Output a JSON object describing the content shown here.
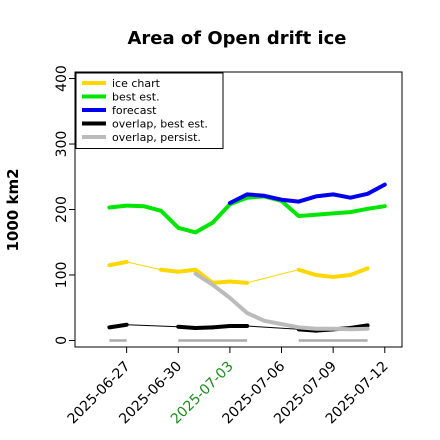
{
  "chart_data": {
    "type": "line",
    "title": "Area of Open drift ice",
    "xlabel": "",
    "ylabel": "1000 km2",
    "xlim": [
      "2025-06-24",
      "2025-07-13"
    ],
    "ylim": [
      -10,
      410
    ],
    "yticks": [
      0,
      100,
      200,
      300,
      400
    ],
    "xticks": [
      "2025-06-27",
      "2025-06-30",
      "2025-07-03",
      "2025-07-06",
      "2025-07-09",
      "2025-07-12"
    ],
    "highlight_tick": "2025-07-03",
    "highlight_color": "#1e8c1e",
    "grid": false,
    "legend_position": "top-left",
    "series": [
      {
        "name": "ice chart",
        "color": "#ffd700",
        "style": "thin-with-thick-segments",
        "x": [
          "2025-06-26",
          "2025-06-27",
          "2025-06-29",
          "2025-06-30",
          "2025-07-01",
          "2025-07-02",
          "2025-07-03",
          "2025-07-04",
          "2025-07-07",
          "2025-07-08",
          "2025-07-09",
          "2025-07-10",
          "2025-07-11"
        ],
        "y": [
          115,
          120,
          108,
          105,
          108,
          88,
          90,
          88,
          108,
          100,
          97,
          100,
          110
        ]
      },
      {
        "name": "best est.",
        "color": "#00e600",
        "style": "thick",
        "x": [
          "2025-06-26",
          "2025-06-27",
          "2025-06-28",
          "2025-06-29",
          "2025-06-30",
          "2025-07-01",
          "2025-07-02",
          "2025-07-03",
          "2025-07-04",
          "2025-07-05",
          "2025-07-06",
          "2025-07-07",
          "2025-07-08",
          "2025-07-09",
          "2025-07-10",
          "2025-07-11",
          "2025-07-12"
        ],
        "y": [
          203,
          206,
          205,
          198,
          172,
          165,
          180,
          208,
          218,
          220,
          213,
          190,
          192,
          194,
          196,
          201,
          205
        ]
      },
      {
        "name": "forecast",
        "color": "#0000ee",
        "style": "thick",
        "x": [
          "2025-07-03",
          "2025-07-04",
          "2025-07-05",
          "2025-07-06",
          "2025-07-07",
          "2025-07-08",
          "2025-07-09",
          "2025-07-10",
          "2025-07-11",
          "2025-07-12"
        ],
        "y": [
          210,
          223,
          221,
          215,
          212,
          220,
          223,
          218,
          224,
          238
        ]
      },
      {
        "name": "overlap, best est.",
        "color": "#000000",
        "style": "thin-with-thick-segments",
        "x": [
          "2025-06-26",
          "2025-06-27",
          "2025-06-30",
          "2025-07-01",
          "2025-07-02",
          "2025-07-03",
          "2025-07-04",
          "2025-07-07",
          "2025-07-08",
          "2025-07-09",
          "2025-07-10",
          "2025-07-11"
        ],
        "y": [
          20,
          24,
          21,
          19,
          20,
          22,
          22,
          17,
          15,
          17,
          19,
          23
        ]
      },
      {
        "name": "overlap, persist.",
        "color": "#bbbbbb",
        "style": "thick",
        "x": [
          "2025-07-01",
          "2025-07-02",
          "2025-07-03",
          "2025-07-04",
          "2025-07-05",
          "2025-07-07",
          "2025-07-08",
          "2025-07-09",
          "2025-07-10",
          "2025-07-11"
        ],
        "y": [
          102,
          85,
          65,
          42,
          30,
          20,
          18,
          18,
          17,
          18
        ]
      }
    ],
    "baseline_bars": {
      "color": "#aaaaaa",
      "y": 0,
      "ranges": [
        [
          "2025-06-26",
          "2025-06-27"
        ],
        [
          "2025-06-30",
          "2025-07-04"
        ],
        [
          "2025-07-07",
          "2025-07-11"
        ]
      ]
    }
  }
}
